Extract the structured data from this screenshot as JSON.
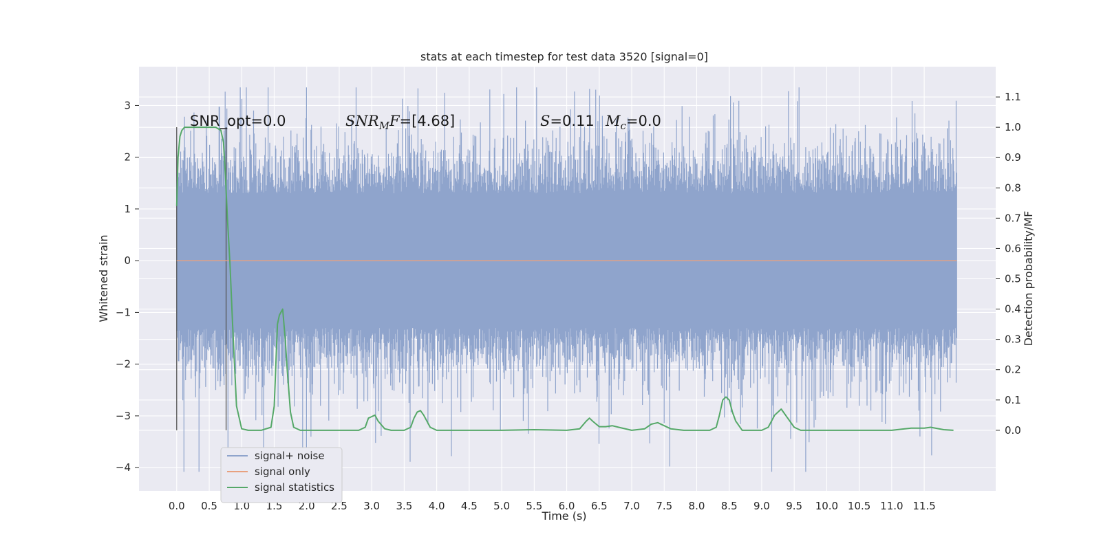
{
  "chart_data": {
    "type": "line",
    "title": "stats at each timestep for test data 3520 [signal=0]",
    "xlabel": "Time (s)",
    "ylabel": "Whitened strain",
    "y2label": "Detection probability/MF",
    "xlim": [
      -0.58,
      12.6
    ],
    "ylim": [
      -4.45,
      3.75
    ],
    "y2lim": [
      -0.2,
      1.2
    ],
    "x_ticks": [
      "0.0",
      "0.5",
      "1.0",
      "1.5",
      "2.0",
      "2.5",
      "3.0",
      "3.5",
      "4.0",
      "4.5",
      "5.0",
      "5.5",
      "6.0",
      "6.5",
      "7.0",
      "7.5",
      "8.0",
      "8.5",
      "9.0",
      "9.5",
      "10.0",
      "10.5",
      "11.0",
      "11.5"
    ],
    "y_ticks": [
      "3",
      "2",
      "1",
      "0",
      "−1",
      "−2",
      "−3",
      "−4"
    ],
    "y2_ticks": [
      "1.1",
      "1.0",
      "0.9",
      "0.8",
      "0.7",
      "0.6",
      "0.5",
      "0.4",
      "0.3",
      "0.2",
      "0.1",
      "0.0"
    ],
    "grid": true,
    "legend_position": "lower-left",
    "annotations": {
      "snr_opt": "SNR_opt=0.0",
      "snr_mf": "SNR_MF=[4.68]",
      "s_stat": "S=0.11",
      "mc": "M_c=0.0"
    },
    "vlines": [
      0.0,
      0.76
    ],
    "series": [
      {
        "name": "signal+ noise",
        "color": "#8fa4cc",
        "x_range": [
          0.0,
          12.0
        ],
        "typical_range": [
          -1.3,
          1.3
        ],
        "peak_max": 3.35,
        "peak_min": -4.08
      },
      {
        "name": "signal only",
        "color": "#e8a17f",
        "x": [
          0.0,
          12.0
        ],
        "y": [
          0.0,
          0.0
        ]
      },
      {
        "name": "signal statistics",
        "color": "#55a868",
        "axis": "right",
        "x": [
          0.0,
          0.02,
          0.05,
          0.08,
          0.12,
          0.2,
          0.3,
          0.45,
          0.6,
          0.68,
          0.72,
          0.75,
          0.78,
          0.82,
          0.86,
          0.92,
          1.0,
          1.1,
          1.3,
          1.45,
          1.5,
          1.55,
          1.58,
          1.63,
          1.67,
          1.7,
          1.75,
          1.8,
          1.9,
          2.0,
          2.2,
          2.5,
          2.8,
          2.9,
          2.95,
          3.0,
          3.05,
          3.1,
          3.2,
          3.3,
          3.5,
          3.6,
          3.65,
          3.7,
          3.75,
          3.8,
          3.9,
          4.0,
          4.5,
          5.0,
          5.5,
          6.0,
          6.2,
          6.3,
          6.35,
          6.4,
          6.5,
          6.6,
          6.7,
          6.8,
          7.0,
          7.2,
          7.3,
          7.4,
          7.5,
          7.6,
          7.8,
          8.0,
          8.2,
          8.3,
          8.35,
          8.4,
          8.45,
          8.5,
          8.55,
          8.6,
          8.7,
          8.9,
          9.0,
          9.1,
          9.2,
          9.3,
          9.4,
          9.5,
          9.6,
          10.0,
          11.0,
          11.2,
          11.3,
          11.5,
          11.6,
          11.8,
          11.95
        ],
        "y": [
          0.74,
          0.9,
          0.97,
          0.99,
          1.0,
          1.0,
          1.0,
          1.0,
          1.0,
          0.99,
          0.95,
          0.84,
          0.7,
          0.55,
          0.35,
          0.08,
          0.005,
          0.0,
          0.0,
          0.01,
          0.08,
          0.35,
          0.38,
          0.4,
          0.3,
          0.2,
          0.06,
          0.01,
          0.0,
          0.0,
          0.0,
          0.0,
          0.0,
          0.01,
          0.04,
          0.045,
          0.05,
          0.03,
          0.005,
          0.0,
          0.0,
          0.01,
          0.04,
          0.06,
          0.065,
          0.05,
          0.01,
          0.0,
          0.0,
          0.0,
          0.002,
          0.0,
          0.005,
          0.03,
          0.04,
          0.03,
          0.012,
          0.012,
          0.015,
          0.01,
          0.0,
          0.005,
          0.02,
          0.025,
          0.015,
          0.005,
          0.0,
          0.0,
          0.0,
          0.01,
          0.05,
          0.1,
          0.11,
          0.1,
          0.06,
          0.03,
          0.0,
          0.0,
          0.0,
          0.01,
          0.05,
          0.07,
          0.04,
          0.01,
          0.0,
          0.0,
          0.0,
          0.005,
          0.007,
          0.007,
          0.01,
          0.002,
          0.0
        ]
      }
    ]
  }
}
